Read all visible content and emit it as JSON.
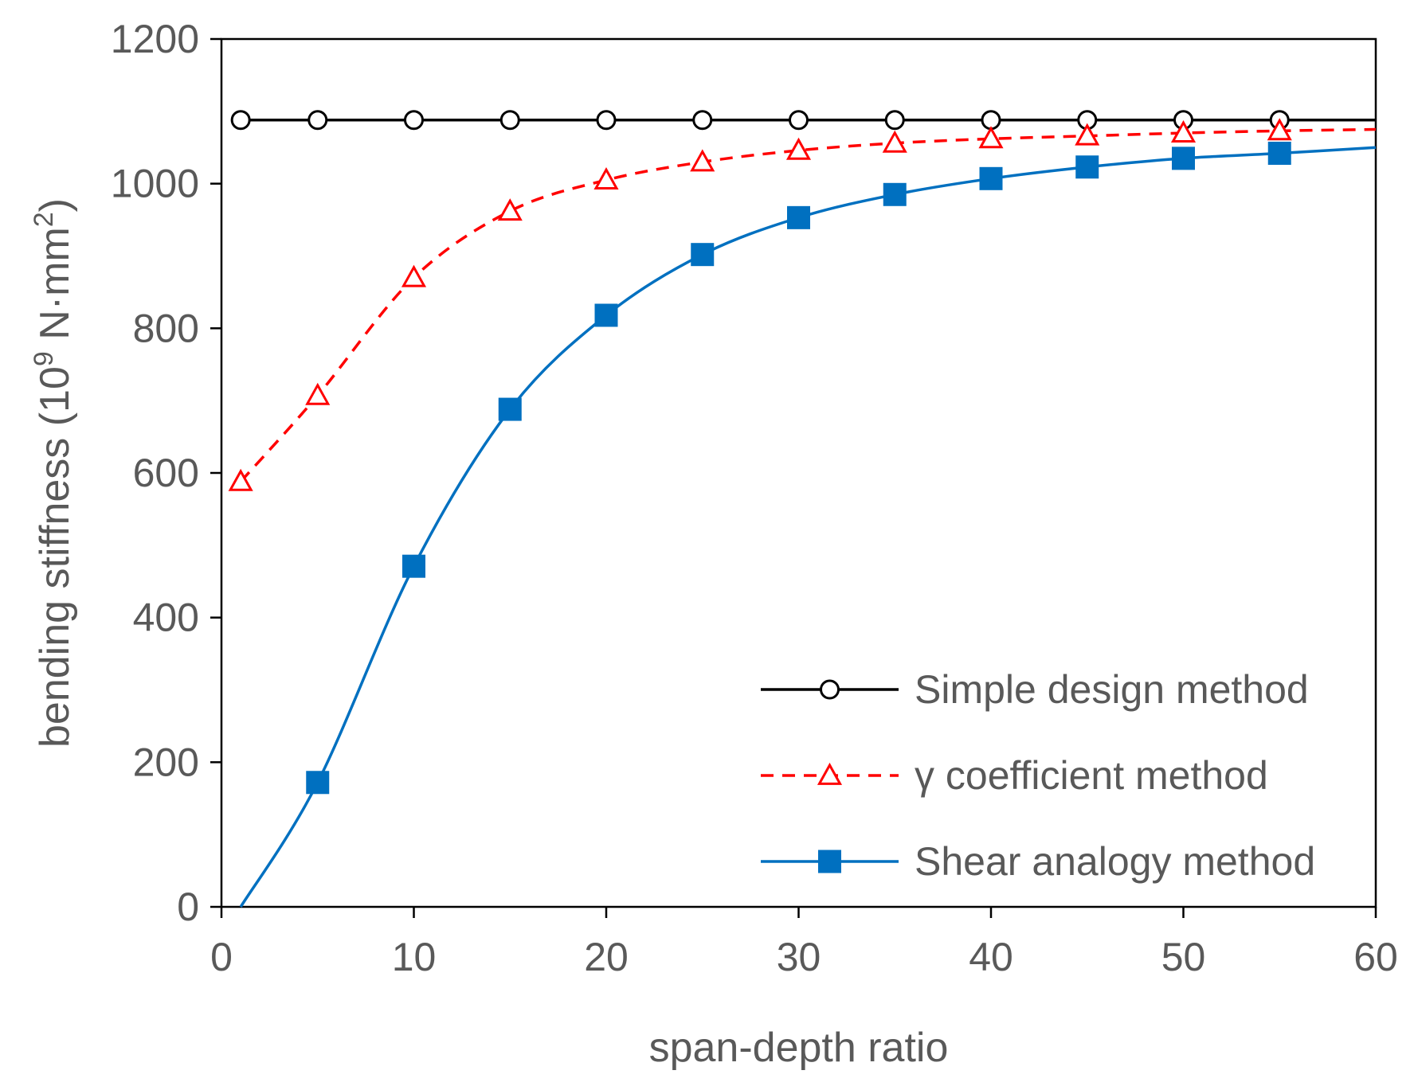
{
  "chart_data": {
    "type": "line",
    "title": "",
    "xlabel": "span-depth ratio",
    "ylabel": {
      "prefix": "bending stiffness (10",
      "exp1": "9",
      "middle": " N·mm",
      "exp2": "2",
      "suffix": ")"
    },
    "xlim": [
      0,
      60
    ],
    "ylim": [
      0,
      1200
    ],
    "xticks": [
      0,
      10,
      20,
      30,
      40,
      50,
      60
    ],
    "yticks": [
      0,
      200,
      400,
      600,
      800,
      1000,
      1200
    ],
    "grid": false,
    "legend_position": "bottom-right",
    "series": [
      {
        "name": "Simple design method",
        "color": "#000000",
        "line_style": "solid",
        "marker": "circle-open",
        "x": [
          1,
          5,
          10,
          15,
          20,
          25,
          30,
          35,
          40,
          45,
          50,
          55
        ],
        "y": [
          1088,
          1088,
          1088,
          1088,
          1088,
          1088,
          1088,
          1088,
          1088,
          1088,
          1088,
          1088
        ],
        "curve_x": [
          1,
          5,
          10,
          15,
          20,
          25,
          30,
          35,
          40,
          45,
          50,
          55,
          60
        ],
        "curve_y": [
          1088,
          1088,
          1088,
          1088,
          1088,
          1088,
          1088,
          1088,
          1088,
          1088,
          1088,
          1088,
          1088
        ]
      },
      {
        "name": "γ coefficient method",
        "color": "#ff0000",
        "line_style": "dashed",
        "marker": "triangle-open",
        "x": [
          1,
          5,
          10,
          15,
          20,
          25,
          30,
          35,
          40,
          45,
          50,
          55
        ],
        "y": [
          588,
          707,
          870,
          962,
          1005,
          1030,
          1046,
          1056,
          1062,
          1066,
          1070,
          1073
        ],
        "curve_x": [
          1,
          5,
          10,
          15,
          20,
          25,
          30,
          35,
          40,
          45,
          50,
          55,
          60
        ],
        "curve_y": [
          588,
          707,
          870,
          962,
          1005,
          1030,
          1046,
          1056,
          1062,
          1066,
          1070,
          1073,
          1075
        ]
      },
      {
        "name": "Shear analogy method",
        "color": "#0070c0",
        "line_style": "solid",
        "marker": "square-filled",
        "x": [
          5,
          10,
          15,
          20,
          25,
          30,
          35,
          40,
          45,
          50,
          55
        ],
        "y": [
          172,
          471,
          688,
          818,
          902,
          953,
          985,
          1007,
          1023,
          1035,
          1042
        ],
        "curve_x": [
          1,
          5,
          10,
          15,
          20,
          25,
          30,
          35,
          40,
          45,
          50,
          55,
          60
        ],
        "curve_y": [
          0,
          172,
          471,
          688,
          818,
          902,
          953,
          985,
          1007,
          1023,
          1035,
          1042,
          1050
        ]
      }
    ]
  }
}
